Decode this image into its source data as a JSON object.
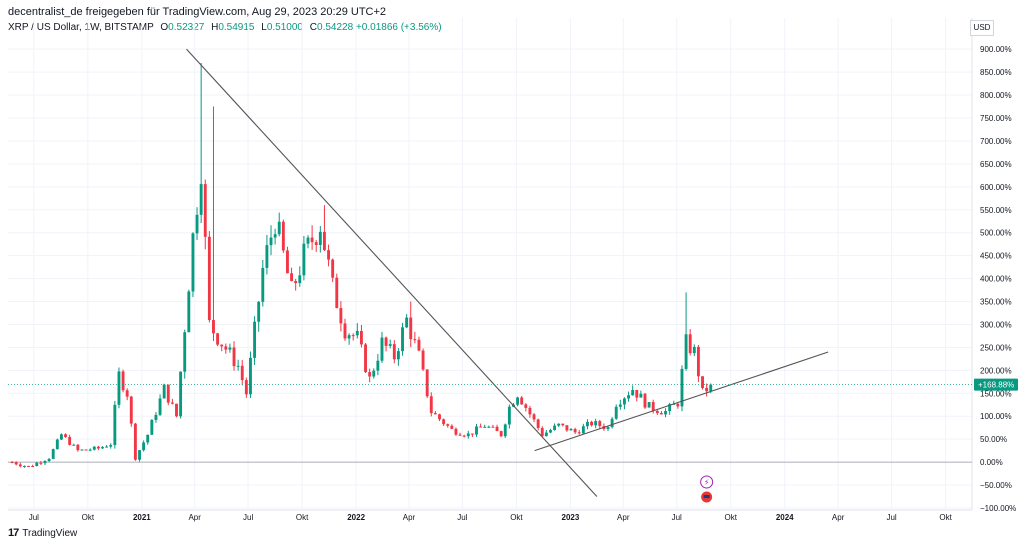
{
  "header": {
    "caption": "decentralist_de freigegeben für TradingView.com, Aug 29, 2023 20:29 UTC+2",
    "symbol": "XRP / US Dollar, 1W, BITSTAMP",
    "o_label": "O",
    "o_value": "0.52327",
    "h_label": "H",
    "h_value": "0.54915",
    "l_label": "L",
    "l_value": "0.51000",
    "c_label": "C",
    "c_value": "0.54228",
    "change": "+0.01866 (+3.56%)"
  },
  "currency": "USD",
  "brand": "TradingView",
  "colors": {
    "up": "#089981",
    "down": "#f23645",
    "line": "#555555",
    "last": "#089981",
    "grid": "#f0f3fa"
  },
  "chart_data": {
    "type": "candlestick",
    "y_unit": "%",
    "ylim": [
      -100,
      920
    ],
    "xlim": [
      "2020-05-18",
      "2024-11-15"
    ],
    "y_ticks": [
      -100,
      -50,
      0,
      50,
      100,
      150,
      200,
      250,
      300,
      350,
      400,
      450,
      500,
      550,
      600,
      650,
      700,
      750,
      800,
      850,
      900
    ],
    "y_tick_labels": [
      "−100.00%",
      "−50.00%",
      "0.00%",
      "50.00%",
      "100.00%",
      "150.00%",
      "200.00%",
      "250.00%",
      "300.00%",
      "350.00%",
      "400.00%",
      "450.00%",
      "500.00%",
      "550.00%",
      "600.00%",
      "650.00%",
      "700.00%",
      "750.00%",
      "800.00%",
      "850.00%",
      "900.00%"
    ],
    "x_ticks": [
      {
        "date": "2020-07-01",
        "label": "Jul"
      },
      {
        "date": "2020-10-01",
        "label": "Okt"
      },
      {
        "date": "2021-01-01",
        "label": "2021"
      },
      {
        "date": "2021-04-01",
        "label": "Apr"
      },
      {
        "date": "2021-07-01",
        "label": "Jul"
      },
      {
        "date": "2021-10-01",
        "label": "Okt"
      },
      {
        "date": "2022-01-01",
        "label": "2022"
      },
      {
        "date": "2022-04-01",
        "label": "Apr"
      },
      {
        "date": "2022-07-01",
        "label": "Jul"
      },
      {
        "date": "2022-10-01",
        "label": "Okt"
      },
      {
        "date": "2023-01-01",
        "label": "2023"
      },
      {
        "date": "2023-04-01",
        "label": "Apr"
      },
      {
        "date": "2023-07-01",
        "label": "Jul"
      },
      {
        "date": "2023-10-01",
        "label": "Okt"
      },
      {
        "date": "2024-01-01",
        "label": "2024"
      },
      {
        "date": "2024-04-01",
        "label": "Apr"
      },
      {
        "date": "2024-07-01",
        "label": "Jul"
      },
      {
        "date": "2024-10-01",
        "label": "Okt"
      }
    ],
    "baseline": 0,
    "last_value": 168.88,
    "last_label": "+168.88%",
    "trend_lines": [
      {
        "from": [
          "2021-03-18",
          900
        ],
        "to": [
          "2023-02-15",
          -75
        ]
      },
      {
        "from": [
          "2022-11-01",
          25
        ],
        "to": [
          "2024-03-15",
          240
        ]
      }
    ],
    "keyframes": [
      [
        "2020-05-25",
        0
      ],
      [
        "2020-06-22",
        -10
      ],
      [
        "2020-07-27",
        10
      ],
      [
        "2020-08-17",
        60
      ],
      [
        "2020-09-14",
        25
      ],
      [
        "2020-10-19",
        30
      ],
      [
        "2020-11-09",
        40
      ],
      [
        "2020-11-23",
        190
      ],
      [
        "2020-12-07",
        150
      ],
      [
        "2020-12-21",
        10
      ],
      [
        "2021-01-11",
        60
      ],
      [
        "2021-02-08",
        160
      ],
      [
        "2021-03-01",
        100
      ],
      [
        "2021-03-29",
        490
      ],
      [
        "2021-04-12",
        650
      ],
      [
        "2021-04-26",
        300
      ],
      [
        "2021-05-17",
        260
      ],
      [
        "2021-06-14",
        210
      ],
      [
        "2021-06-28",
        150
      ],
      [
        "2021-07-26",
        420
      ],
      [
        "2021-08-16",
        530
      ],
      [
        "2021-09-13",
        370
      ],
      [
        "2021-10-04",
        450
      ],
      [
        "2021-11-01",
        520
      ],
      [
        "2021-11-22",
        380
      ],
      [
        "2021-12-13",
        290
      ],
      [
        "2022-01-03",
        270
      ],
      [
        "2022-01-24",
        180
      ],
      [
        "2022-02-14",
        260
      ],
      [
        "2022-03-07",
        230
      ],
      [
        "2022-03-28",
        310
      ],
      [
        "2022-04-18",
        230
      ],
      [
        "2022-05-09",
        110
      ],
      [
        "2022-06-13",
        70
      ],
      [
        "2022-07-11",
        60
      ],
      [
        "2022-08-08",
        80
      ],
      [
        "2022-09-05",
        60
      ],
      [
        "2022-09-19",
        120
      ],
      [
        "2022-10-03",
        150
      ],
      [
        "2022-10-31",
        90
      ],
      [
        "2022-11-14",
        60
      ],
      [
        "2022-12-12",
        80
      ],
      [
        "2023-01-09",
        65
      ],
      [
        "2023-02-06",
        85
      ],
      [
        "2023-03-06",
        75
      ],
      [
        "2023-03-20",
        130
      ],
      [
        "2023-04-17",
        160
      ],
      [
        "2023-05-15",
        120
      ],
      [
        "2023-06-12",
        110
      ],
      [
        "2023-07-03",
        130
      ],
      [
        "2023-07-17",
        260
      ],
      [
        "2023-07-31",
        240
      ],
      [
        "2023-08-14",
        150
      ],
      [
        "2023-08-28",
        168.88
      ]
    ],
    "spikes": [
      {
        "date": "2021-04-12",
        "high": 870
      },
      {
        "date": "2021-05-03",
        "high": 775
      },
      {
        "date": "2021-11-08",
        "high": 560
      },
      {
        "date": "2023-07-17",
        "high": 370
      },
      {
        "date": "2022-04-04",
        "high": 350
      }
    ]
  }
}
